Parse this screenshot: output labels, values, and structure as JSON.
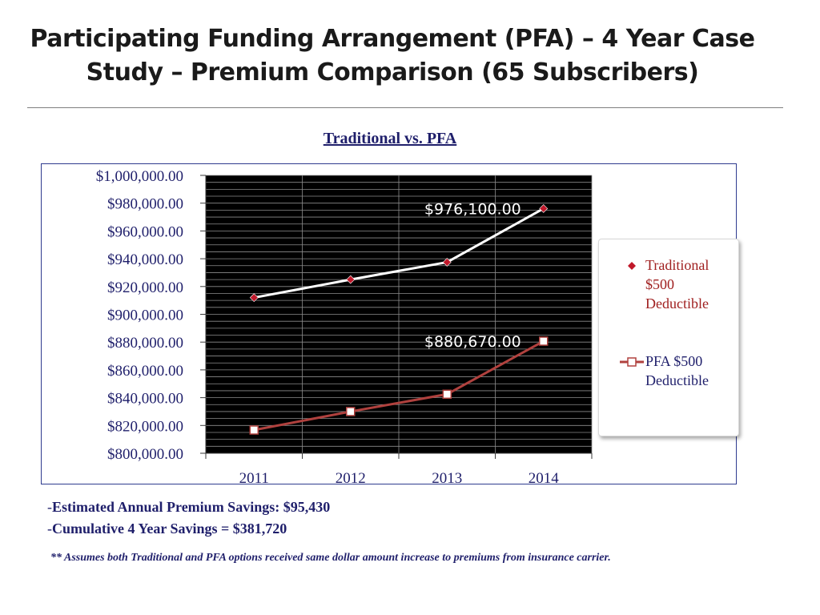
{
  "slide": {
    "title": "Participating Funding Arrangement (PFA) – 4 Year Case Study – Premium Comparison (65 Subscribers)",
    "savings_annual": "Estimated Annual Premium Savings: $95,430",
    "savings_cumulative": "Cumulative 4 Year Savings = $381,720",
    "dash": "-",
    "footnote": "** Assumes both Traditional and PFA options received same dollar amount increase to premiums from insurance carrier."
  },
  "colors": {
    "plot_bg": "#000000",
    "grid": "#8c8c8c",
    "traditional_line": "#ffffff",
    "traditional_marker": "#c0182a",
    "pfa_line": "#b0413e",
    "pfa_marker": "#ffffff",
    "axis_text": "#1f1f6b",
    "label_text": "#ffffff"
  },
  "chart_data": {
    "type": "line",
    "title": "Traditional vs. PFA",
    "categories": [
      "2011",
      "2012",
      "2013",
      "2014"
    ],
    "ylim": [
      800000,
      1000000
    ],
    "ytick_step": 20000,
    "yticks": [
      "$800,000.00",
      "$820,000.00",
      "$840,000.00",
      "$860,000.00",
      "$880,000.00",
      "$900,000.00",
      "$920,000.00",
      "$940,000.00",
      "$960,000.00",
      "$980,000.00",
      "$1,000,000.00"
    ],
    "series": [
      {
        "name": "Traditional $500 Deductible",
        "values": [
          912000,
          925000,
          937500,
          976100
        ],
        "marker": "diamond"
      },
      {
        "name": "PFA $500 Deductible",
        "values": [
          816700,
          830000,
          842500,
          880670
        ],
        "marker": "square"
      }
    ],
    "annotations": [
      {
        "series": 0,
        "index": 3,
        "text": "$976,100.00"
      },
      {
        "series": 1,
        "index": 3,
        "text": "$880,670.00"
      }
    ]
  }
}
